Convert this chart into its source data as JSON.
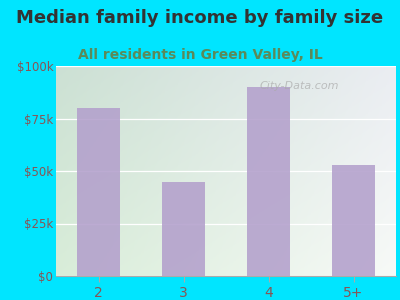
{
  "title": "Median family income by family size",
  "subtitle": "All residents in Green Valley, IL",
  "categories": [
    "2",
    "3",
    "4",
    "5+"
  ],
  "values": [
    80000,
    45000,
    90000,
    53000
  ],
  "bar_color": "#b3a0cc",
  "title_fontsize": 13,
  "subtitle_fontsize": 10,
  "subtitle_color": "#5a8a5a",
  "title_color": "#333333",
  "tick_color": "#885555",
  "background_outer": "#00e5ff",
  "ylim": [
    0,
    100000
  ],
  "yticks": [
    0,
    25000,
    50000,
    75000,
    100000
  ],
  "ytick_labels": [
    "$0",
    "$25k",
    "$50k",
    "$75k",
    "$100k"
  ],
  "watermark": "City-Data.com",
  "bg_left_top": "#c8e8c8",
  "bg_right_top": "#e8f0f8",
  "bg_bottom": "#f0f4e8"
}
